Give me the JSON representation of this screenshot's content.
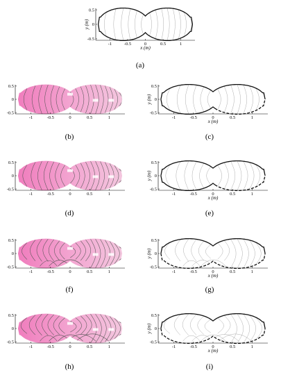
{
  "figure": {
    "axis_labels": {
      "x": "x (m)",
      "y": "y (m)"
    },
    "colors": {
      "outline": "#111111",
      "contour": "#707070",
      "fill_light": "#f3c6de",
      "fill_dark": "#f07dbd"
    },
    "panels": [
      {
        "id": "a",
        "caption": "(a)",
        "kind": "outline",
        "variant": 0,
        "dashed_bottom": false,
        "xticks": [
          "-1",
          "-0.5",
          "0",
          "0.5",
          "1"
        ],
        "yticks": [
          "0.5",
          "0",
          "-0.5"
        ],
        "show_xlabel": true,
        "show_ylabel": true
      },
      {
        "id": "b",
        "caption": "(b)",
        "kind": "filled",
        "variant": 1,
        "xticks": [
          "-1",
          "-0.5",
          "0",
          "0.5",
          "1"
        ],
        "yticks": [
          "0.5",
          "0",
          "-0.5"
        ]
      },
      {
        "id": "c",
        "caption": "(c)",
        "kind": "outline",
        "variant": 1,
        "dashed_bottom": true,
        "xticks": [
          "-1",
          "-0.5",
          "0",
          "0.5",
          "1"
        ],
        "yticks": [
          "0.5",
          "0",
          "-0.5"
        ],
        "show_xlabel": true,
        "show_ylabel": true
      },
      {
        "id": "d",
        "caption": "(d)",
        "kind": "filled",
        "variant": 2,
        "xticks": [
          "-1",
          "-0.5",
          "0",
          "0.5",
          "1"
        ],
        "yticks": [
          "0.5",
          "0",
          "-0.5"
        ]
      },
      {
        "id": "e",
        "caption": "(e)",
        "kind": "outline",
        "variant": 2,
        "dashed_bottom": true,
        "xticks": [
          "-1",
          "-0.5",
          "0",
          "0.5",
          "1"
        ],
        "yticks": [
          "0.5",
          "0",
          "-0.5"
        ],
        "show_xlabel": true,
        "show_ylabel": true
      },
      {
        "id": "f",
        "caption": "(f)",
        "kind": "filled",
        "variant": 3,
        "xticks": [
          "-1",
          "-0.5",
          "0",
          "0.5",
          "1"
        ],
        "yticks": [
          "0.5",
          "0",
          "-0.5"
        ]
      },
      {
        "id": "g",
        "caption": "(g)",
        "kind": "outline",
        "variant": 3,
        "dashed_bottom": true,
        "xticks": [
          "-1",
          "-0.5",
          "0",
          "0.5",
          "1"
        ],
        "yticks": [
          "0.5",
          "0",
          "-0.5"
        ],
        "show_xlabel": true,
        "show_ylabel": true
      },
      {
        "id": "h",
        "caption": "(h)",
        "kind": "filled",
        "variant": 4,
        "xticks": [
          "-1",
          "-0.5",
          "0",
          "0.5",
          "1"
        ],
        "yticks": [
          "0.5",
          "0",
          "-0.5"
        ]
      },
      {
        "id": "i",
        "caption": "(i)",
        "kind": "outline",
        "variant": 4,
        "dashed_bottom": true,
        "xticks": [
          "-1",
          "-0.5",
          "0",
          "0.5",
          "1"
        ],
        "yticks": [
          "0.5",
          "0",
          "-0.5"
        ],
        "show_xlabel": true,
        "show_ylabel": true
      }
    ]
  }
}
